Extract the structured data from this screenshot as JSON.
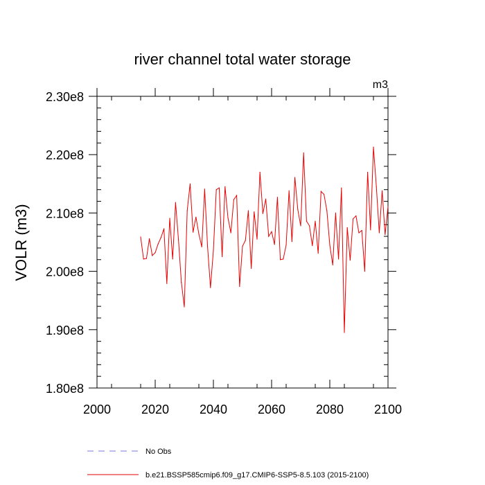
{
  "chart_data": {
    "type": "line",
    "title": "river channel total water storage",
    "units_label": "m3",
    "ylabel": "VOLR  (m3)",
    "xlabel": "",
    "xlim": [
      2000,
      2100
    ],
    "ylim": [
      180000000,
      230000000
    ],
    "x_ticks": [
      {
        "value": 2000,
        "label": "2000"
      },
      {
        "value": 2020,
        "label": "2020"
      },
      {
        "value": 2040,
        "label": "2040"
      },
      {
        "value": 2060,
        "label": "2060"
      },
      {
        "value": 2080,
        "label": "2080"
      },
      {
        "value": 2100,
        "label": "2100"
      }
    ],
    "y_ticks": [
      {
        "value": 180000000,
        "label": "1.80e8"
      },
      {
        "value": 190000000,
        "label": "1.90e8"
      },
      {
        "value": 200000000,
        "label": "2.00e8"
      },
      {
        "value": 210000000,
        "label": "2.10e8"
      },
      {
        "value": 220000000,
        "label": "2.20e8"
      },
      {
        "value": 230000000,
        "label": "2.30e8"
      }
    ],
    "series": [
      {
        "name": "b.e21.BSSP585cmip6.f09_g17.CMIP6-SSP5-8.5.103 (2015-2100)",
        "color": "#e60000",
        "style": "solid",
        "x": [
          2015,
          2016,
          2017,
          2018,
          2019,
          2020,
          2021,
          2022,
          2023,
          2024,
          2025,
          2026,
          2027,
          2028,
          2029,
          2030,
          2031,
          2032,
          2033,
          2034,
          2035,
          2036,
          2037,
          2038,
          2039,
          2040,
          2041,
          2042,
          2043,
          2044,
          2045,
          2046,
          2047,
          2048,
          2049,
          2050,
          2051,
          2052,
          2053,
          2054,
          2055,
          2056,
          2057,
          2058,
          2059,
          2060,
          2061,
          2062,
          2063,
          2064,
          2065,
          2066,
          2067,
          2068,
          2069,
          2070,
          2071,
          2072,
          2073,
          2074,
          2075,
          2076,
          2077,
          2078,
          2079,
          2080,
          2081,
          2082,
          2083,
          2084,
          2085,
          2086,
          2087,
          2088,
          2089,
          2090,
          2091,
          2092,
          2093,
          2094,
          2095,
          2096,
          2097,
          2098,
          2099,
          2100
        ],
        "values": [
          205900000,
          202100000,
          202200000,
          205600000,
          202700000,
          203200000,
          204700000,
          205800000,
          207300000,
          197900000,
          209100000,
          202100000,
          211800000,
          205400000,
          198100000,
          193900000,
          210400000,
          215000000,
          206700000,
          209300000,
          206400000,
          204200000,
          214100000,
          204200000,
          197200000,
          203600000,
          214000000,
          214300000,
          202500000,
          214500000,
          209200000,
          206600000,
          212300000,
          213000000,
          197400000,
          204300000,
          205300000,
          210400000,
          200500000,
          210200000,
          205500000,
          217000000,
          209900000,
          212400000,
          206000000,
          206800000,
          204600000,
          212700000,
          202000000,
          202100000,
          204500000,
          213800000,
          205100000,
          216100000,
          210600000,
          207800000,
          220300000,
          208600000,
          207800000,
          204400000,
          208600000,
          203100000,
          213700000,
          213200000,
          210400000,
          204500000,
          201100000,
          210000000,
          202100000,
          214300000,
          189500000,
          207500000,
          201900000,
          209000000,
          209500000,
          206600000,
          207000000,
          200000000,
          217000000,
          207100000,
          221300000,
          214500000,
          206600000,
          213800000,
          206300000,
          211100000
        ]
      }
    ],
    "legend": [
      {
        "label": "No Obs",
        "color": "#7777dd",
        "style": "dashed"
      },
      {
        "label": "b.e21.BSSP585cmip6.f09_g17.CMIP6-SSP5-8.5.103 (2015-2100)",
        "color": "#e60000",
        "style": "solid"
      }
    ]
  }
}
